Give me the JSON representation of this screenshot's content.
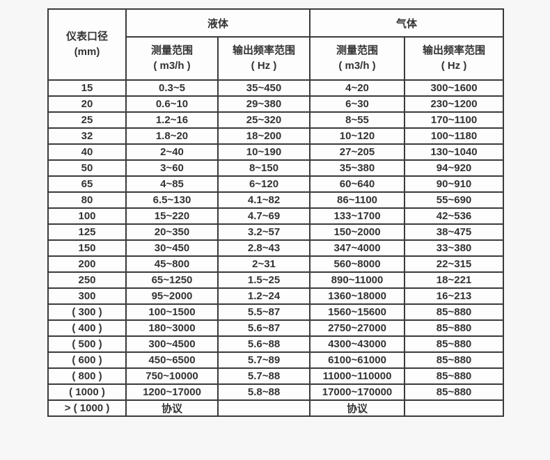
{
  "page": {
    "background_color": "#f7f7f7"
  },
  "table": {
    "style": {
      "border_color": "#3a3a3a",
      "cell_background": "#fdfdfd",
      "text_color": "#333333"
    },
    "header": {
      "diameter_label": "仪表口径",
      "diameter_unit": "(mm)",
      "liquid_label": "液体",
      "gas_label": "气体",
      "measure_label": "测量范围",
      "measure_unit": "( m3/h )",
      "freq_label": "输出频率范围",
      "freq_unit": "( Hz )"
    },
    "columns": [
      "dn",
      "liquid_range",
      "liquid_freq",
      "gas_range",
      "gas_freq"
    ],
    "rows": [
      {
        "dn": "15",
        "liquid_range": "0.3~5",
        "liquid_freq": "35~450",
        "gas_range": "4~20",
        "gas_freq": "300~1600"
      },
      {
        "dn": "20",
        "liquid_range": "0.6~10",
        "liquid_freq": "29~380",
        "gas_range": "6~30",
        "gas_freq": "230~1200"
      },
      {
        "dn": "25",
        "liquid_range": "1.2~16",
        "liquid_freq": "25~320",
        "gas_range": "8~55",
        "gas_freq": "170~1100"
      },
      {
        "dn": "32",
        "liquid_range": "1.8~20",
        "liquid_freq": "18~200",
        "gas_range": "10~120",
        "gas_freq": "100~1180"
      },
      {
        "dn": "40",
        "liquid_range": "2~40",
        "liquid_freq": "10~190",
        "gas_range": "27~205",
        "gas_freq": "130~1040"
      },
      {
        "dn": "50",
        "liquid_range": "3~60",
        "liquid_freq": "8~150",
        "gas_range": "35~380",
        "gas_freq": "94~920"
      },
      {
        "dn": "65",
        "liquid_range": "4~85",
        "liquid_freq": "6~120",
        "gas_range": "60~640",
        "gas_freq": "90~910"
      },
      {
        "dn": "80",
        "liquid_range": "6.5~130",
        "liquid_freq": "4.1~82",
        "gas_range": "86~1100",
        "gas_freq": "55~690"
      },
      {
        "dn": "100",
        "liquid_range": "15~220",
        "liquid_freq": "4.7~69",
        "gas_range": "133~1700",
        "gas_freq": "42~536"
      },
      {
        "dn": "125",
        "liquid_range": "20~350",
        "liquid_freq": "3.2~57",
        "gas_range": "150~2000",
        "gas_freq": "38~475"
      },
      {
        "dn": "150",
        "liquid_range": "30~450",
        "liquid_freq": "2.8~43",
        "gas_range": "347~4000",
        "gas_freq": "33~380"
      },
      {
        "dn": "200",
        "liquid_range": "45~800",
        "liquid_freq": "2~31",
        "gas_range": "560~8000",
        "gas_freq": "22~315"
      },
      {
        "dn": "250",
        "liquid_range": "65~1250",
        "liquid_freq": "1.5~25",
        "gas_range": "890~11000",
        "gas_freq": "18~221"
      },
      {
        "dn": "300",
        "liquid_range": "95~2000",
        "liquid_freq": "1.2~24",
        "gas_range": "1360~18000",
        "gas_freq": "16~213"
      },
      {
        "dn": "( 300 )",
        "liquid_range": "100~1500",
        "liquid_freq": "5.5~87",
        "gas_range": "1560~15600",
        "gas_freq": "85~880"
      },
      {
        "dn": "( 400 )",
        "liquid_range": "180~3000",
        "liquid_freq": "5.6~87",
        "gas_range": "2750~27000",
        "gas_freq": "85~880"
      },
      {
        "dn": "( 500 )",
        "liquid_range": "300~4500",
        "liquid_freq": "5.6~88",
        "gas_range": "4300~43000",
        "gas_freq": "85~880"
      },
      {
        "dn": "( 600 )",
        "liquid_range": "450~6500",
        "liquid_freq": "5.7~89",
        "gas_range": "6100~61000",
        "gas_freq": "85~880"
      },
      {
        "dn": "( 800 )",
        "liquid_range": "750~10000",
        "liquid_freq": "5.7~88",
        "gas_range": "11000~110000",
        "gas_freq": "85~880"
      },
      {
        "dn": "( 1000 )",
        "liquid_range": "1200~17000",
        "liquid_freq": "5.8~88",
        "gas_range": "17000~170000",
        "gas_freq": "85~880"
      },
      {
        "dn": "> ( 1000 )",
        "liquid_range": "协议",
        "liquid_freq": "",
        "gas_range": "协议",
        "gas_freq": ""
      }
    ]
  }
}
